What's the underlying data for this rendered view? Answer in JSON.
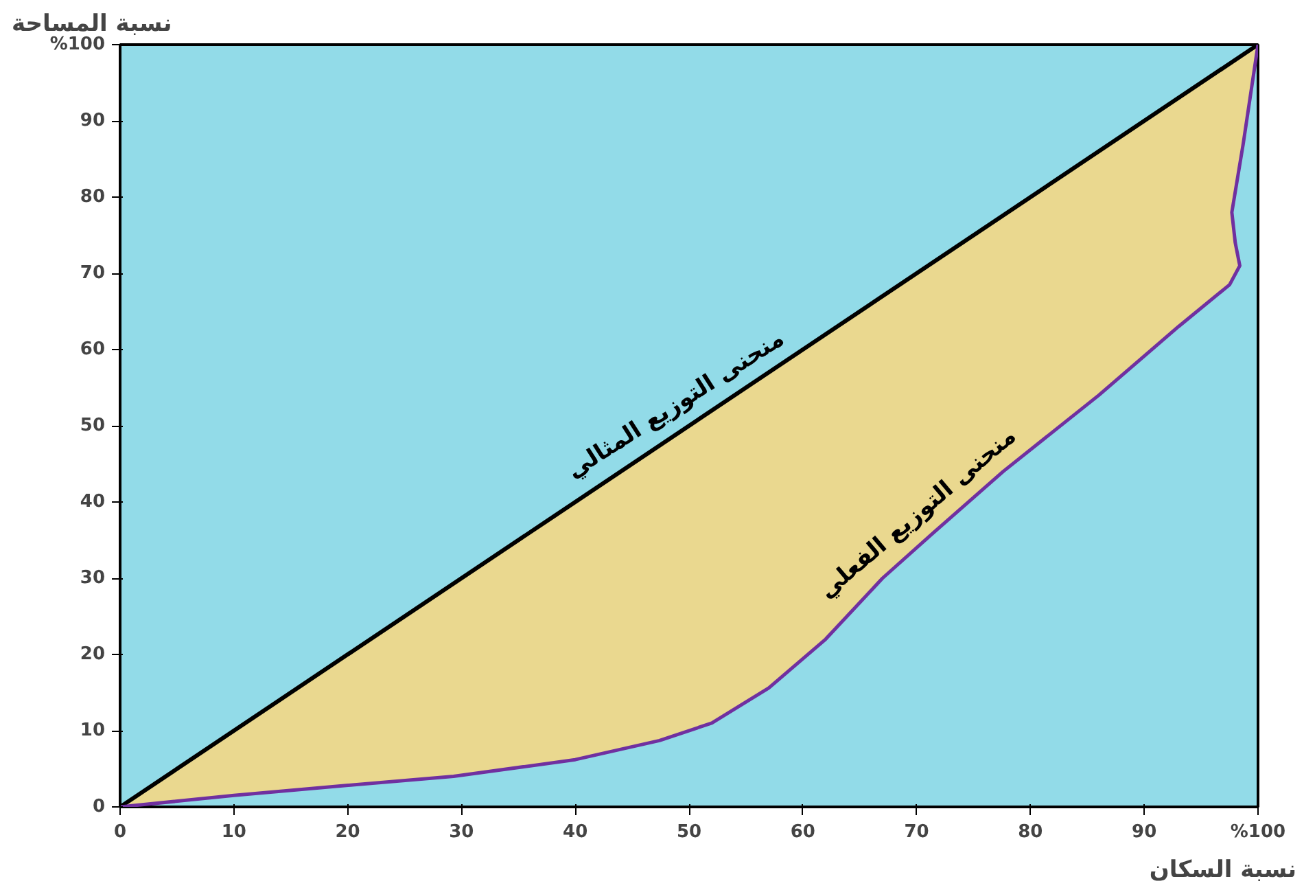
{
  "chart_data": {
    "type": "line",
    "xlabel": "نسبة السكان",
    "ylabel": "نسبة المساحة",
    "xlim": [
      0,
      100
    ],
    "ylim": [
      0,
      100
    ],
    "xticks": [
      0,
      10,
      20,
      30,
      40,
      50,
      60,
      70,
      80,
      90,
      {
        "value": 100,
        "label": "%100"
      }
    ],
    "yticks": [
      0,
      10,
      20,
      30,
      40,
      50,
      60,
      70,
      80,
      90,
      {
        "value": 100,
        "label": "%100"
      }
    ],
    "grid": false,
    "marker": "none",
    "line_style": "solid",
    "series": [
      {
        "name": "منحنى التوزيع المثالي",
        "color": "#000000",
        "x": [
          0,
          100
        ],
        "values": [
          0,
          100
        ]
      },
      {
        "name": "منحنى التوزيع الفعلي",
        "color": "#7030a0",
        "x": [
          0,
          10,
          19.7,
          29.3,
          40,
          47.4,
          52,
          57,
          62,
          67,
          71.5,
          77.6,
          86,
          93,
          97.5,
          98.4,
          98,
          97.7,
          98.7,
          100
        ],
        "values": [
          0,
          1.5,
          2.8,
          4,
          6.2,
          8.7,
          11,
          15.6,
          22,
          30,
          36,
          44,
          54,
          63,
          68.5,
          71,
          74,
          78,
          87,
          100
        ]
      }
    ]
  }
}
